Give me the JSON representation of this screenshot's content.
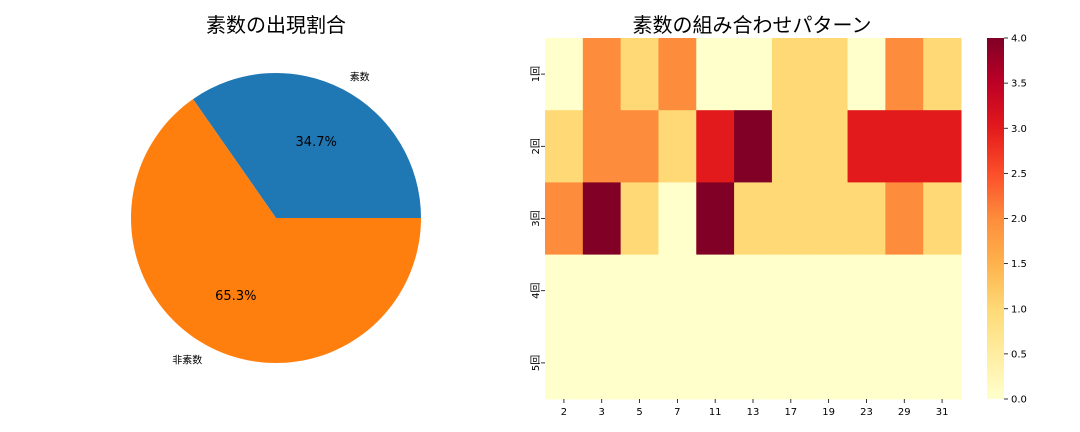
{
  "chart_data": [
    {
      "type": "pie",
      "title": "素数の出現割合",
      "labels": [
        "素数",
        "非素数"
      ],
      "values": [
        34.7,
        65.3
      ],
      "value_labels": [
        "34.7%",
        "65.3%"
      ],
      "colors": [
        "#1f77b4",
        "#ff7f0e"
      ]
    },
    {
      "type": "heatmap",
      "title": "素数の組み合わせパターン",
      "x_categories": [
        "2",
        "3",
        "5",
        "7",
        "11",
        "13",
        "17",
        "19",
        "23",
        "29",
        "31"
      ],
      "y_categories": [
        "1回",
        "2回",
        "3回",
        "4回",
        "5回"
      ],
      "values": [
        [
          0,
          2,
          1,
          2,
          0,
          0,
          1,
          1,
          0,
          2,
          1
        ],
        [
          1,
          2,
          2,
          1,
          3,
          4,
          1,
          1,
          3,
          3,
          3
        ],
        [
          2,
          4,
          1,
          0,
          4,
          1,
          1,
          1,
          1,
          2,
          1
        ],
        [
          0,
          0,
          0,
          0,
          0,
          0,
          0,
          0,
          0,
          0,
          0
        ],
        [
          0,
          0,
          0,
          0,
          0,
          0,
          0,
          0,
          0,
          0,
          0
        ]
      ],
      "colorscale": "YlOrRd",
      "colorbar_ticks": [
        "0.0",
        "0.5",
        "1.0",
        "1.5",
        "2.0",
        "2.5",
        "3.0",
        "3.5",
        "4.0"
      ],
      "vmin": 0,
      "vmax": 4
    }
  ]
}
